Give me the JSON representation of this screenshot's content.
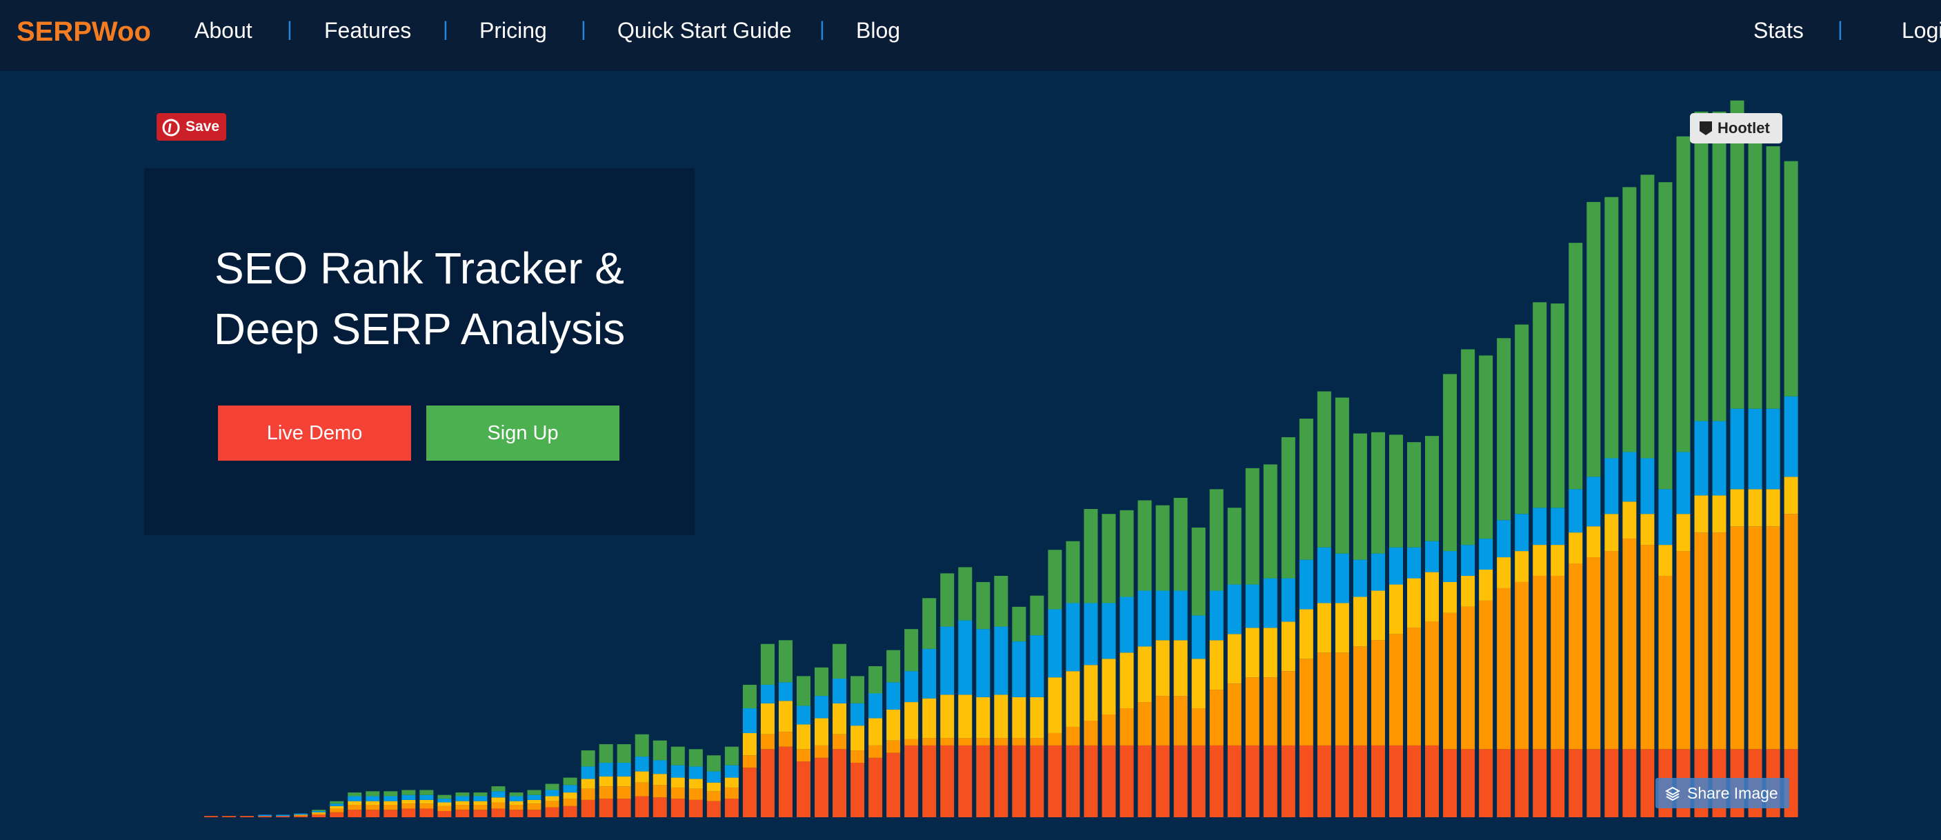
{
  "logo": "SERPWoo",
  "nav": {
    "left": [
      "About",
      "Features",
      "Pricing",
      "Quick Start Guide",
      "Blog"
    ],
    "right": [
      "Stats",
      "Login"
    ],
    "separator": "|"
  },
  "hero": {
    "title_lines": [
      "SEO Rank Tracker &",
      "Deep SERP Analysis"
    ],
    "buttons": [
      "Live Demo",
      "Sign Up"
    ]
  },
  "badges": {
    "save": "Save",
    "hootlet": "Hootlet",
    "share": "Share Image"
  },
  "chart_data": {
    "type": "bar",
    "stacked": true,
    "ylim": [
      0,
      600
    ],
    "series": [
      {
        "color": "#f4511e",
        "values": [
          1,
          1,
          1,
          1,
          1,
          1,
          2,
          4,
          6,
          6,
          6,
          7,
          7,
          5,
          6,
          6,
          7,
          6,
          6,
          8,
          9,
          14,
          15,
          15,
          17,
          16,
          15,
          14,
          13,
          15,
          40,
          55,
          57,
          45,
          48,
          55,
          44,
          48,
          52,
          58,
          58,
          58,
          58,
          58,
          58,
          58,
          58,
          58,
          58,
          58,
          58,
          58,
          58,
          58,
          58,
          58,
          58,
          58,
          58,
          58,
          58,
          58,
          58,
          58,
          58,
          58,
          58,
          58,
          58,
          55,
          55,
          55,
          55,
          55,
          55,
          55,
          55,
          55,
          55,
          55,
          55,
          55,
          55,
          55,
          55,
          55,
          55,
          55,
          55
        ]
      },
      {
        "color": "#ff9800",
        "values": [
          0,
          0,
          0,
          0,
          0,
          1,
          1,
          3,
          4,
          4,
          4,
          4,
          4,
          4,
          4,
          4,
          5,
          4,
          5,
          5,
          6,
          9,
          10,
          10,
          11,
          10,
          9,
          9,
          8,
          9,
          10,
          12,
          12,
          10,
          10,
          12,
          10,
          10,
          10,
          5,
          6,
          6,
          6,
          6,
          6,
          6,
          6,
          10,
          15,
          20,
          25,
          30,
          35,
          40,
          40,
          30,
          45,
          50,
          55,
          55,
          60,
          70,
          75,
          75,
          80,
          85,
          90,
          95,
          100,
          110,
          115,
          120,
          130,
          135,
          140,
          140,
          150,
          155,
          160,
          170,
          165,
          140,
          160,
          175,
          175,
          180,
          180,
          180,
          190
        ]
      },
      {
        "color": "#ffc107",
        "values": [
          0,
          0,
          0,
          0,
          0,
          0,
          1,
          2,
          3,
          3,
          3,
          3,
          3,
          3,
          3,
          3,
          4,
          3,
          3,
          4,
          5,
          8,
          8,
          8,
          9,
          9,
          8,
          8,
          7,
          8,
          18,
          25,
          25,
          20,
          22,
          25,
          20,
          22,
          25,
          30,
          32,
          35,
          35,
          33,
          35,
          33,
          33,
          45,
          45,
          45,
          45,
          45,
          45,
          45,
          45,
          40,
          40,
          40,
          40,
          40,
          40,
          40,
          40,
          40,
          40,
          40,
          40,
          40,
          40,
          25,
          25,
          25,
          25,
          25,
          25,
          25,
          25,
          25,
          30,
          30,
          25,
          25,
          30,
          30,
          30,
          30,
          30,
          30,
          30
        ]
      },
      {
        "color": "#039be5",
        "values": [
          0,
          0,
          0,
          1,
          1,
          1,
          1,
          2,
          4,
          4,
          4,
          4,
          4,
          3,
          4,
          4,
          5,
          4,
          4,
          5,
          6,
          10,
          11,
          11,
          12,
          11,
          10,
          10,
          9,
          10,
          20,
          15,
          15,
          15,
          18,
          20,
          18,
          20,
          22,
          25,
          40,
          55,
          60,
          55,
          55,
          45,
          50,
          55,
          55,
          50,
          45,
          45,
          45,
          40,
          40,
          35,
          40,
          40,
          35,
          40,
          35,
          40,
          45,
          40,
          30,
          30,
          30,
          25,
          25,
          25,
          25,
          25,
          30,
          30,
          30,
          30,
          35,
          40,
          45,
          40,
          45,
          45,
          50,
          60,
          60,
          65,
          65,
          65,
          65
        ]
      },
      {
        "color": "#43a047",
        "values": [
          0,
          0,
          0,
          0,
          0,
          0,
          1,
          2,
          3,
          4,
          4,
          4,
          4,
          3,
          3,
          3,
          4,
          3,
          4,
          5,
          6,
          13,
          15,
          15,
          18,
          16,
          15,
          14,
          13,
          15,
          19,
          33,
          34,
          24,
          23,
          28,
          22,
          22,
          26,
          34,
          41,
          43,
          43,
          38,
          41,
          28,
          32,
          48,
          50,
          76,
          72,
          70,
          73,
          69,
          75,
          71,
          82,
          62,
          94,
          92,
          114,
          114,
          126,
          126,
          102,
          98,
          91,
          85,
          85,
          143,
          158,
          148,
          147,
          153,
          166,
          165,
          199,
          222,
          211,
          214,
          229,
          248,
          255,
          250,
          250,
          249,
          225,
          212,
          190
        ]
      }
    ]
  }
}
